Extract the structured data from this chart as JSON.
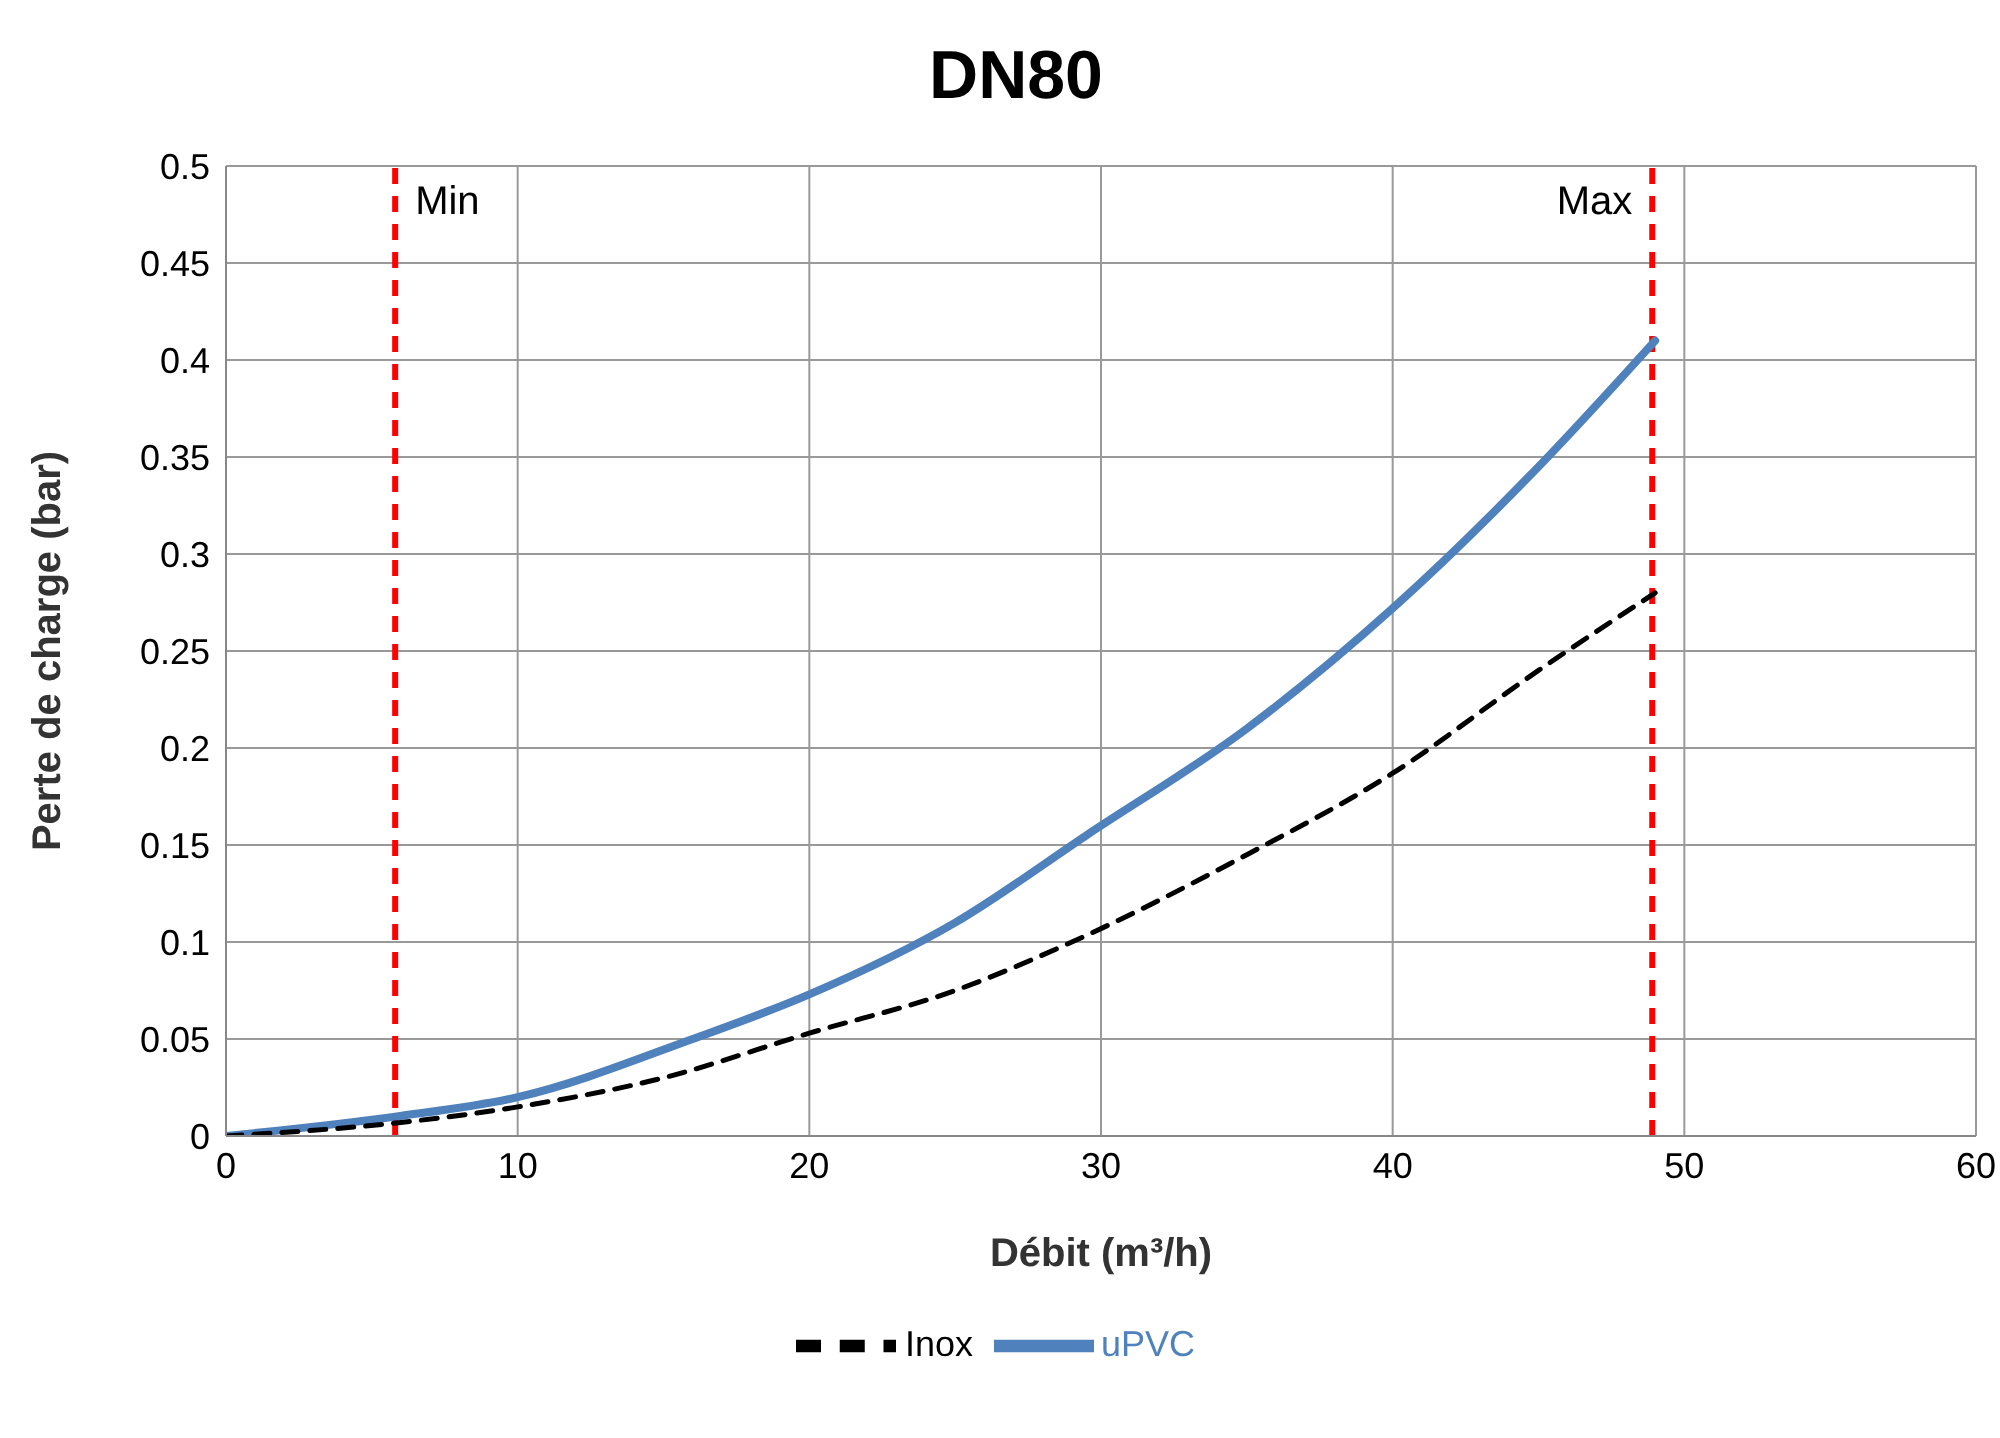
{
  "chart_data": {
    "type": "line",
    "title": "DN80",
    "xlabel": "Débit (m³/h)",
    "ylabel": "Perte de charge (bar)",
    "series": [
      {
        "name": "uPVC",
        "color": "#4f81bd",
        "line_style": "solid",
        "x": [
          0,
          5.8,
          10,
          16,
          20,
          25,
          29.5,
          35,
          40,
          45,
          49
        ],
        "values": [
          0,
          0.01,
          0.02,
          0.05,
          0.073,
          0.11,
          0.155,
          0.21,
          0.272,
          0.345,
          0.41
        ]
      },
      {
        "name": "Inox",
        "color": "#000000",
        "line_style": "dashed",
        "x": [
          0,
          6,
          10,
          15,
          20,
          25,
          29,
          35,
          40,
          45,
          49
        ],
        "values": [
          0,
          0.007,
          0.015,
          0.03,
          0.053,
          0.075,
          0.1,
          0.145,
          0.187,
          0.24,
          0.28
        ]
      }
    ],
    "xlim": [
      0,
      60
    ],
    "xticks": [
      0,
      10,
      20,
      30,
      40,
      50,
      60
    ],
    "ylim": [
      0,
      0.5
    ],
    "yticks": [
      0,
      0.05,
      0.1,
      0.15,
      0.2,
      0.25,
      0.3,
      0.35,
      0.4,
      0.45,
      0.5
    ],
    "ref_lines": [
      {
        "axis": "x",
        "value": 5.8,
        "label": "Min",
        "color": "#ff0000",
        "line_style": "dashed"
      },
      {
        "axis": "x",
        "value": 48.9,
        "label": "Max",
        "color": "#ff0000",
        "line_style": "dashed"
      }
    ],
    "grid": true,
    "legend": "bottom",
    "marker": "none"
  }
}
